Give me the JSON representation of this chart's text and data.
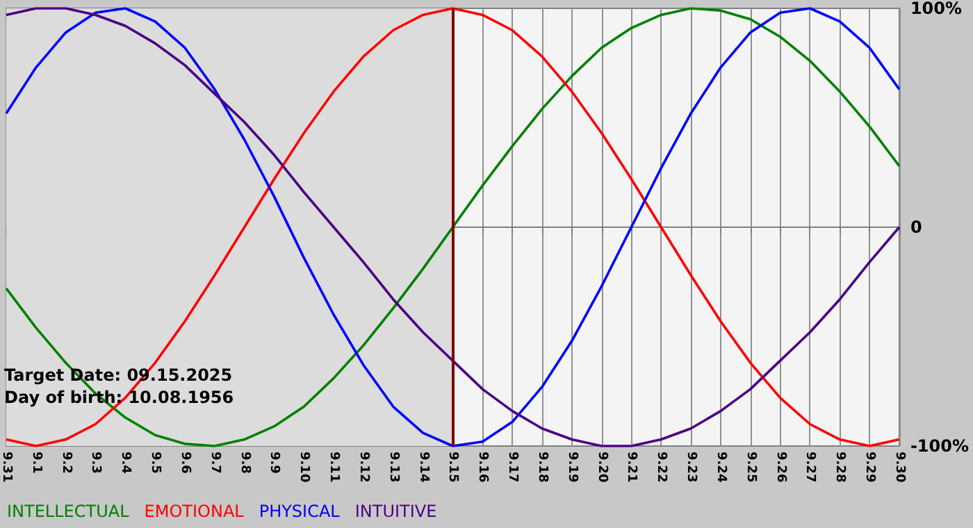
{
  "chart_data": {
    "type": "line",
    "categories": [
      "9.31",
      "9.1",
      "9.2",
      "9.3",
      "9.4",
      "9.5",
      "9.6",
      "9.7",
      "9.8",
      "9.9",
      "9.10",
      "9.11",
      "9.12",
      "9.13",
      "9.14",
      "9.15",
      "9.16",
      "9.17",
      "9.18",
      "9.19",
      "9.20",
      "9.21",
      "9.22",
      "9.23",
      "9.24",
      "9.25",
      "9.26",
      "9.27",
      "9.28",
      "9.29",
      "9.30"
    ],
    "series": [
      {
        "name": "INTELLECTUAL",
        "color": "#008000",
        "values": [
          -28,
          -46,
          -62,
          -76,
          -87,
          -95,
          -99,
          -100,
          -97,
          -91,
          -82,
          -69,
          -54,
          -37,
          -19,
          0,
          19,
          37,
          54,
          69,
          82,
          91,
          97,
          100,
          99,
          95,
          87,
          76,
          62,
          46,
          28
        ]
      },
      {
        "name": "EMOTIONAL",
        "color": "#ff0000",
        "values": [
          -97,
          -100,
          -97,
          -90,
          -78,
          -62,
          -43,
          -22,
          0,
          22,
          43,
          62,
          78,
          90,
          97,
          100,
          97,
          90,
          78,
          62,
          43,
          22,
          0,
          -22,
          -43,
          -62,
          -78,
          -90,
          -97,
          -100,
          -97
        ]
      },
      {
        "name": "PHYSICAL",
        "color": "#0000ff",
        "values": [
          52,
          73,
          89,
          98,
          100,
          94,
          82,
          63,
          40,
          14,
          -14,
          -40,
          -63,
          -82,
          -94,
          -100,
          -98,
          -89,
          -73,
          -52,
          -27,
          0,
          27,
          52,
          73,
          89,
          98,
          100,
          94,
          82,
          63
        ]
      },
      {
        "name": "INTUITIVE",
        "color": "#4b0082",
        "values": [
          97,
          100,
          100,
          97,
          92,
          84,
          74,
          61,
          48,
          33,
          16,
          0,
          -16,
          -33,
          -48,
          -61,
          -74,
          -84,
          -92,
          -97,
          -100,
          -100,
          -97,
          -92,
          -84,
          -74,
          -61,
          -48,
          -33,
          -16,
          0
        ]
      }
    ],
    "ylim": [
      -100,
      100
    ],
    "yticks": [
      {
        "value": -100,
        "label": "-100%"
      },
      0,
      {
        "value": 100,
        "label": "100%"
      }
    ],
    "grid": "x",
    "legend": "bottom left",
    "marker": "none",
    "line_style": "solid",
    "ref_lines": [
      {
        "axis": "x",
        "value": "9.15",
        "color": "#800000"
      }
    ],
    "bands": [
      {
        "axis": "x",
        "from": "9.31",
        "to": "9.15",
        "color": "#dcdcdc"
      }
    ],
    "annotations": [
      "Target Date: 09.15.2025",
      "Day of birth: 10.08.1956"
    ]
  }
}
